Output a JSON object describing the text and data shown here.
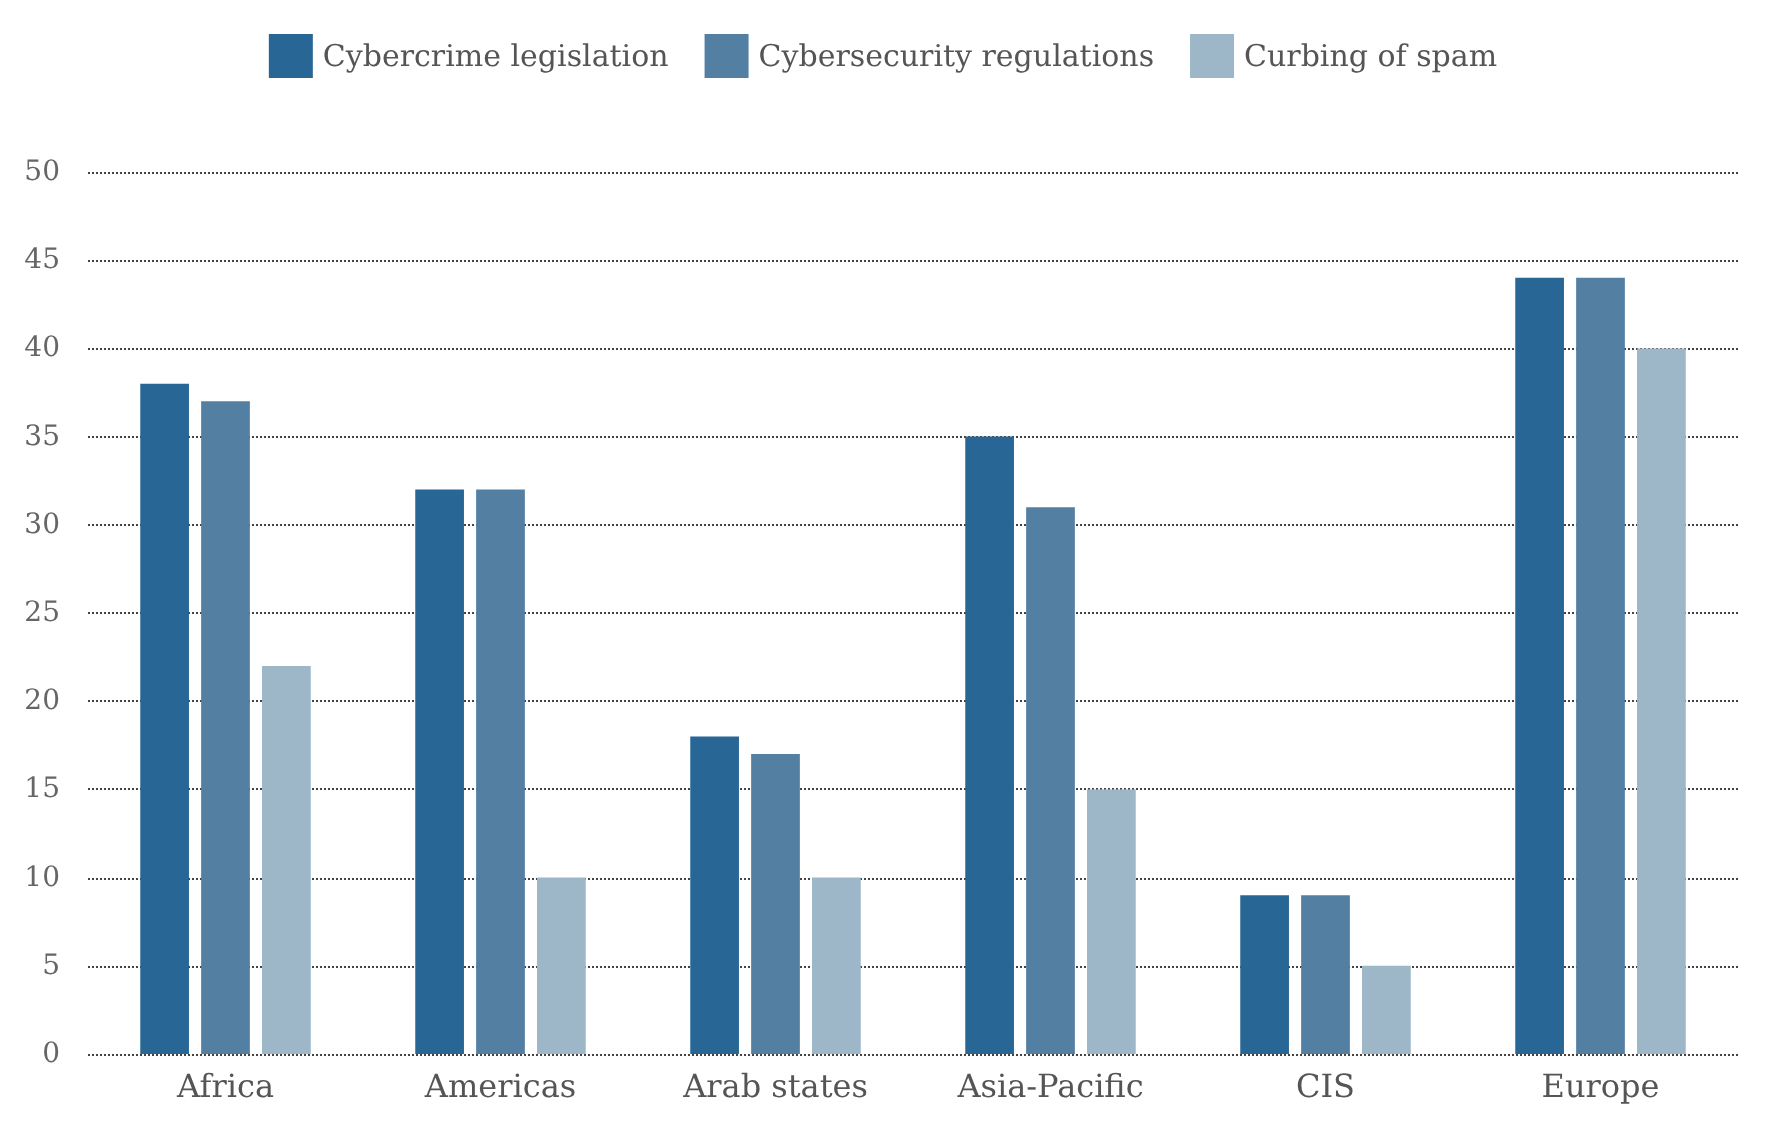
{
  "chart_data": {
    "type": "bar",
    "categories": [
      "Africa",
      "Americas",
      "Arab states",
      "Asia-Pacific",
      "CIS",
      "Europe"
    ],
    "series": [
      {
        "name": "Cybercrime legislation",
        "color": "#286795",
        "values": [
          38,
          32,
          18,
          35,
          9,
          44
        ]
      },
      {
        "name": "Cybersecurity regulations",
        "color": "#537fa3",
        "values": [
          37,
          32,
          17,
          31,
          9,
          44
        ]
      },
      {
        "name": "Curbing of spam",
        "color": "#9db7c9",
        "values": [
          22,
          10,
          10,
          15,
          5,
          40
        ]
      }
    ],
    "ylim": [
      0,
      50
    ],
    "yticks": [
      0,
      5,
      10,
      15,
      20,
      25,
      30,
      35,
      40,
      45,
      50
    ],
    "grid": "y",
    "line_style": "dotted",
    "legend": "top"
  }
}
